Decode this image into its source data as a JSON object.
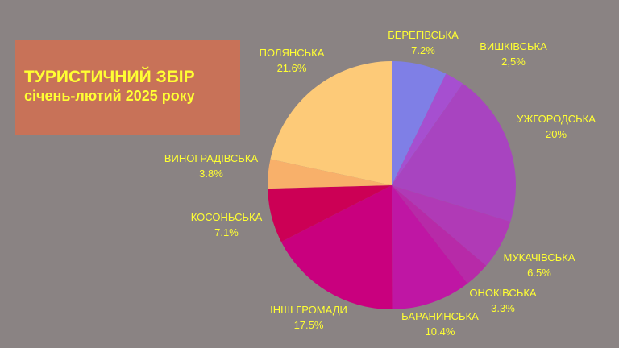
{
  "title": {
    "line1": "ТУРИСТИЧНИЙ ЗБІР",
    "line2": "січень-лютий 2025 року"
  },
  "chart_data": {
    "type": "pie",
    "start_angle_deg": 0,
    "direction": "clockwise",
    "label_color": "#ffff33",
    "slices": [
      {
        "name": "БЕРЕГІВСЬКА",
        "value": 7.2,
        "label": "7.2%",
        "color": "#7f7fe6"
      },
      {
        "name": "ВИШКІВСЬКА",
        "value": 2.5,
        "label": "2,5%",
        "color": "#a64fd0"
      },
      {
        "name": "УЖГОРОДСЬКА",
        "value": 20,
        "label": "20%",
        "color": "#a844c0"
      },
      {
        "name": "МУКАЧІВСЬКА",
        "value": 6.5,
        "label": "6.5%",
        "color": "#b03ab6"
      },
      {
        "name": "ОНОКІВСЬКА",
        "value": 3.3,
        "label": "3.3%",
        "color": "#b72aa8"
      },
      {
        "name": "БАРАНИНСЬКА",
        "value": 10.4,
        "label": "10.4%",
        "color": "#bf16a4"
      },
      {
        "name": "ІНШІ ГРОМАДИ",
        "value": 17.5,
        "label": "17.5%",
        "color": "#c9007e"
      },
      {
        "name": "КОСОНЬСЬКА",
        "value": 7.1,
        "label": "7.1%",
        "color": "#cc0055"
      },
      {
        "name": "ВИНОГРАДІВСЬКА",
        "value": 3.8,
        "label": "3.8%",
        "color": "#f8b06a"
      },
      {
        "name": "ПОЛЯНСЬКА",
        "value": 21.6,
        "label": "21.6%",
        "color": "#fdca78"
      }
    ]
  }
}
